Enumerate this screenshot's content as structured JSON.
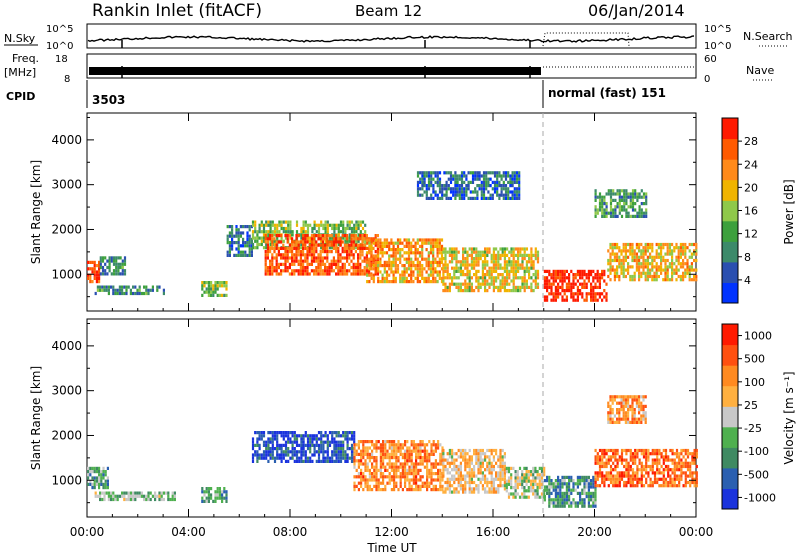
{
  "header": {
    "station": "Rankin Inlet (fitACF)",
    "beam": "Beam 12",
    "date": "06/Jan/2014"
  },
  "sky_panel": {
    "label": "N.Sky",
    "right_label": "N.Search",
    "left_ticks": [
      "10^5",
      "10^0"
    ],
    "right_ticks": [
      "10^5",
      "10^0"
    ]
  },
  "freq_panel": {
    "label_top": "Freq.",
    "label_unit": "[MHz]",
    "left_ticks": [
      "18",
      "8"
    ],
    "right_ticks": [
      "60",
      "0"
    ],
    "right_label": "Nave"
  },
  "cpid_panel": {
    "label": "CPID",
    "mode1": "3503",
    "mode2": "normal (fast) 151"
  },
  "colors": {
    "power": [
      "#0033ff",
      "#2a4fb0",
      "#3c8a6a",
      "#3da03d",
      "#8fc84a",
      "#f0b400",
      "#ff8a1a",
      "#ff5a00",
      "#ff1a00"
    ],
    "velocity": [
      "#1a33dd",
      "#2a5fb0",
      "#3f8a62",
      "#4fb04f",
      "#c8c8c8",
      "#ffb040",
      "#ff8a20",
      "#ff5010",
      "#ff1a00"
    ]
  },
  "chart_data": [
    {
      "type": "heatmap",
      "title": "",
      "xlabel": "",
      "ylabel": "Slant Range [km]",
      "x_ticks": [
        "00:00",
        "04:00",
        "08:00",
        "12:00",
        "16:00",
        "20:00",
        "00:00"
      ],
      "x_range_hours": [
        0,
        24
      ],
      "yticks": [
        1000,
        2000,
        3000,
        4000
      ],
      "ylim": [
        180,
        4600
      ],
      "colorbar": {
        "label": "Power [dB]",
        "ticks": [
          "4",
          "8",
          "12",
          "16",
          "20",
          "24",
          "28"
        ],
        "range": [
          0,
          32
        ]
      },
      "regions": [
        {
          "t": [
            0.0,
            0.5
          ],
          "r": [
            800,
            1300
          ],
          "level": 0.9
        },
        {
          "t": [
            0.5,
            1.5
          ],
          "r": [
            1000,
            1400
          ],
          "level": 0.3
        },
        {
          "t": [
            0.3,
            3.0
          ],
          "r": [
            550,
            750
          ],
          "level": 0.3
        },
        {
          "t": [
            4.5,
            5.5
          ],
          "r": [
            500,
            850
          ],
          "level": 0.45
        },
        {
          "t": [
            5.5,
            6.5
          ],
          "r": [
            1400,
            2100
          ],
          "level": 0.25
        },
        {
          "t": [
            6.5,
            11.0
          ],
          "r": [
            1600,
            2200
          ],
          "level": 0.45
        },
        {
          "t": [
            7.0,
            11.5
          ],
          "r": [
            1000,
            1900
          ],
          "level": 0.85
        },
        {
          "t": [
            11.0,
            14.0
          ],
          "r": [
            800,
            1800
          ],
          "level": 0.7
        },
        {
          "t": [
            14.0,
            17.8
          ],
          "r": [
            600,
            1600
          ],
          "level": 0.6
        },
        {
          "t": [
            18.0,
            20.5
          ],
          "r": [
            400,
            1100
          ],
          "level": 0.98
        },
        {
          "t": [
            20.5,
            24.0
          ],
          "r": [
            900,
            1700
          ],
          "level": 0.65
        },
        {
          "t": [
            13.0,
            17.0
          ],
          "r": [
            2700,
            3300
          ],
          "level": 0.2
        },
        {
          "t": [
            20.0,
            22.0
          ],
          "r": [
            2300,
            2900
          ],
          "level": 0.35
        }
      ]
    },
    {
      "type": "heatmap",
      "title": "",
      "xlabel": "Time UT",
      "ylabel": "Slant Range [km]",
      "x_ticks": [
        "00:00",
        "04:00",
        "08:00",
        "12:00",
        "16:00",
        "20:00",
        "00:00"
      ],
      "x_range_hours": [
        0,
        24
      ],
      "yticks": [
        1000,
        2000,
        3000,
        4000
      ],
      "ylim": [
        180,
        4600
      ],
      "colorbar": {
        "label": "Velocity [m s⁻¹]",
        "ticks": [
          "1000",
          "500",
          "100",
          "25",
          "-25",
          "-100",
          "-500",
          "-1000"
        ],
        "range": [
          -1000,
          1000
        ]
      },
      "regions": [
        {
          "t": [
            0.0,
            0.8
          ],
          "r": [
            800,
            1300
          ],
          "level": 0.35
        },
        {
          "t": [
            0.3,
            3.5
          ],
          "r": [
            550,
            750
          ],
          "level": 0.4
        },
        {
          "t": [
            4.5,
            5.5
          ],
          "r": [
            500,
            850
          ],
          "level": 0.35
        },
        {
          "t": [
            6.5,
            10.5
          ],
          "r": [
            1400,
            2100
          ],
          "level": 0.1
        },
        {
          "t": [
            10.5,
            14.0
          ],
          "r": [
            800,
            1900
          ],
          "level": 0.72
        },
        {
          "t": [
            14.0,
            16.5
          ],
          "r": [
            700,
            1700
          ],
          "level": 0.6
        },
        {
          "t": [
            16.5,
            18.0
          ],
          "r": [
            600,
            1300
          ],
          "level": 0.48
        },
        {
          "t": [
            18.0,
            20.0
          ],
          "r": [
            400,
            1100
          ],
          "level": 0.3
        },
        {
          "t": [
            20.0,
            24.0
          ],
          "r": [
            900,
            1700
          ],
          "level": 0.78
        },
        {
          "t": [
            20.5,
            22.0
          ],
          "r": [
            2300,
            2900
          ],
          "level": 0.7
        }
      ]
    }
  ]
}
